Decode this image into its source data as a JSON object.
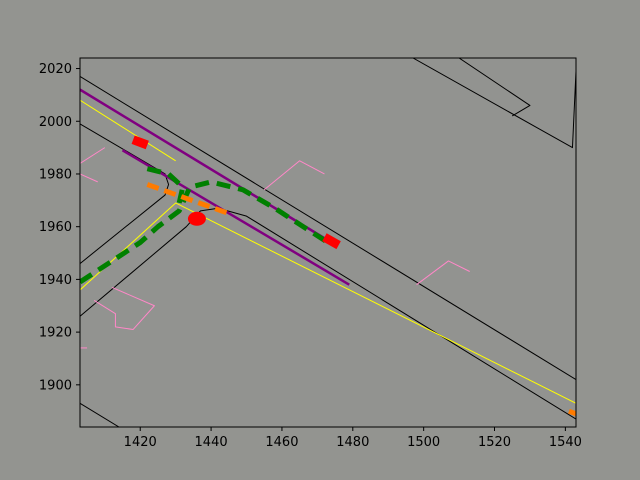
{
  "chart_data": {
    "type": "line",
    "title": "",
    "xlabel": "",
    "ylabel": "",
    "xlim": [
      1403,
      1543
    ],
    "ylim": [
      1884,
      2024
    ],
    "xticks": [
      1420,
      1440,
      1460,
      1480,
      1500,
      1520,
      1540
    ],
    "yticks": [
      1900,
      1920,
      1940,
      1960,
      1980,
      2000,
      2020
    ],
    "grid": false,
    "legend": "none",
    "colors": {
      "figure_bg": "#939490",
      "axes_bg": "#929390",
      "road_boundary": "#000000",
      "lane_center": "#ffff00",
      "crosswalk": "#ff88c8",
      "route": "#800080",
      "trajectory": "#008000",
      "agent_history": "#ff7b00",
      "ego_vehicle": "#ff0000",
      "other_vehicle": "#ff0000"
    },
    "series": [
      {
        "kind": "road_boundary",
        "points": [
          [
            1403,
            2017
          ],
          [
            1543,
            1902
          ]
        ]
      },
      {
        "kind": "road_boundary",
        "points": [
          [
            1403,
            1999
          ],
          [
            1422,
            1984
          ],
          [
            1427,
            1980
          ],
          [
            1428,
            1976
          ],
          [
            1427,
            1972
          ],
          [
            1403,
            1946
          ]
        ]
      },
      {
        "kind": "road_boundary",
        "points": [
          [
            1403,
            1926
          ],
          [
            1433,
            1960
          ],
          [
            1437,
            1966
          ],
          [
            1442,
            1967
          ],
          [
            1450,
            1964
          ],
          [
            1543,
            1887
          ]
        ]
      },
      {
        "kind": "road_boundary",
        "points": [
          [
            1403,
            1893
          ],
          [
            1414,
            1884
          ]
        ]
      },
      {
        "kind": "road_boundary",
        "points": [
          [
            1497,
            2024
          ],
          [
            1542,
            1990
          ],
          [
            1543,
            2019
          ]
        ]
      },
      {
        "kind": "road_boundary",
        "points": [
          [
            1510,
            2024
          ],
          [
            1530,
            2006
          ],
          [
            1525,
            2002
          ]
        ]
      },
      {
        "kind": "lane_center",
        "points": [
          [
            1403,
            2008
          ],
          [
            1430,
            1985
          ]
        ]
      },
      {
        "kind": "lane_center",
        "points": [
          [
            1403,
            1936
          ],
          [
            1430,
            1969
          ],
          [
            1543,
            1893
          ]
        ]
      },
      {
        "kind": "crosswalk",
        "points": [
          [
            1403,
            1984
          ],
          [
            1410,
            1990
          ]
        ]
      },
      {
        "kind": "crosswalk",
        "points": [
          [
            1403,
            1980
          ],
          [
            1408,
            1977
          ]
        ]
      },
      {
        "kind": "crosswalk",
        "points": [
          [
            1455,
            1974
          ],
          [
            1465,
            1985
          ],
          [
            1472,
            1980
          ]
        ]
      },
      {
        "kind": "crosswalk",
        "points": [
          [
            1498,
            1938
          ],
          [
            1507,
            1947
          ],
          [
            1513,
            1943
          ]
        ]
      },
      {
        "kind": "crosswalk",
        "points": [
          [
            1407,
            1932
          ],
          [
            1413,
            1927
          ],
          [
            1413,
            1922
          ],
          [
            1418,
            1921
          ],
          [
            1424,
            1930
          ],
          [
            1412,
            1937
          ]
        ]
      },
      {
        "kind": "crosswalk",
        "points": [
          [
            1403,
            1914
          ],
          [
            1405,
            1914
          ]
        ]
      },
      {
        "kind": "route",
        "points": [
          [
            1403,
            2012
          ],
          [
            1474,
            1954
          ]
        ]
      },
      {
        "kind": "route",
        "points": [
          [
            1415,
            1989
          ],
          [
            1479,
            1938
          ]
        ]
      },
      {
        "kind": "trajectory",
        "points": [
          [
            1403,
            1939
          ],
          [
            1420,
            1954
          ],
          [
            1425,
            1960
          ],
          [
            1431,
            1966
          ],
          [
            1434,
            1975
          ],
          [
            1440,
            1977
          ],
          [
            1449,
            1974
          ],
          [
            1458,
            1967
          ],
          [
            1466,
            1960
          ],
          [
            1473,
            1954
          ]
        ]
      },
      {
        "kind": "trajectory",
        "points": [
          [
            1422,
            1982
          ],
          [
            1428,
            1980
          ],
          [
            1432,
            1975
          ],
          [
            1431,
            1969
          ]
        ]
      },
      {
        "kind": "agent_history",
        "points": [
          [
            1422,
            1976
          ],
          [
            1445,
            1965
          ]
        ]
      },
      {
        "kind": "agent_history",
        "points": [
          [
            1541,
            1890
          ],
          [
            1543,
            1889
          ]
        ]
      },
      {
        "kind": "ego_vehicle",
        "points": [
          [
            1418,
            1993
          ],
          [
            1422,
            1991
          ]
        ]
      },
      {
        "kind": "ego_vehicle",
        "points": [
          [
            1472,
            1956
          ],
          [
            1476,
            1953
          ]
        ]
      },
      {
        "kind": "other_vehicle",
        "points": [
          [
            1436,
            1963
          ]
        ]
      }
    ]
  }
}
